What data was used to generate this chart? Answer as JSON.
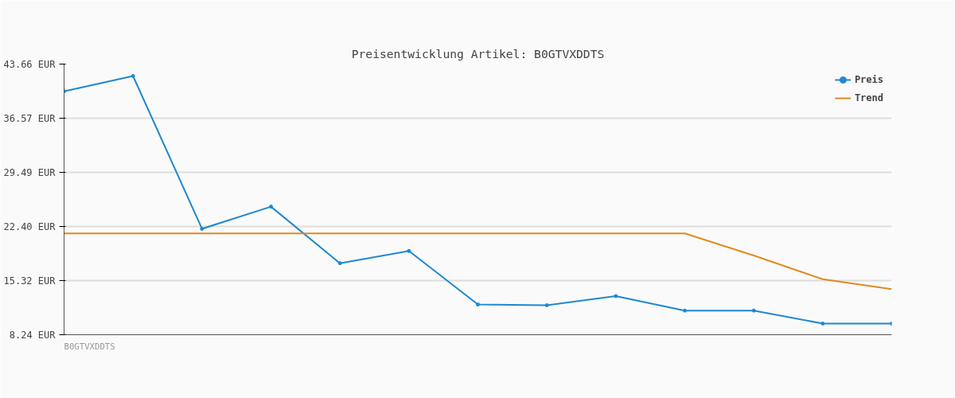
{
  "chart_data": {
    "type": "line",
    "title": "Preisentwicklung Artikel: B0GTVXDDTS",
    "categories": [
      null,
      null,
      null,
      null,
      null,
      null,
      null,
      null,
      null,
      null,
      null,
      null,
      null
    ],
    "series": [
      {
        "name": "Preis",
        "color": "#1f88d0",
        "marker": "circle",
        "values": [
          40.1,
          42.1,
          22.1,
          25.0,
          17.6,
          19.2,
          12.2,
          12.1,
          13.3,
          11.4,
          11.4,
          9.7,
          9.7
        ]
      },
      {
        "name": "Trend",
        "color": "#e08a20",
        "marker": "none",
        "values": [
          21.5,
          21.5,
          21.5,
          21.5,
          21.5,
          21.5,
          21.5,
          21.5,
          21.5,
          21.5,
          18.6,
          15.5,
          14.2
        ]
      }
    ],
    "ylim": [
      8.24,
      43.66
    ],
    "yticks": [
      {
        "value": 8.24,
        "label": "8.24 EUR"
      },
      {
        "value": 15.32,
        "label": "15.32 EUR"
      },
      {
        "value": 22.4,
        "label": "22.40 EUR"
      },
      {
        "value": 29.49,
        "label": "29.49 EUR"
      },
      {
        "value": 36.57,
        "label": "36.57 EUR"
      },
      {
        "value": 43.66,
        "label": "43.66 EUR"
      }
    ],
    "grid": "y",
    "legend": "top right",
    "tick_labels": "y",
    "line_style": "solid",
    "annotations": [
      "B0GTVXDDTS"
    ]
  }
}
